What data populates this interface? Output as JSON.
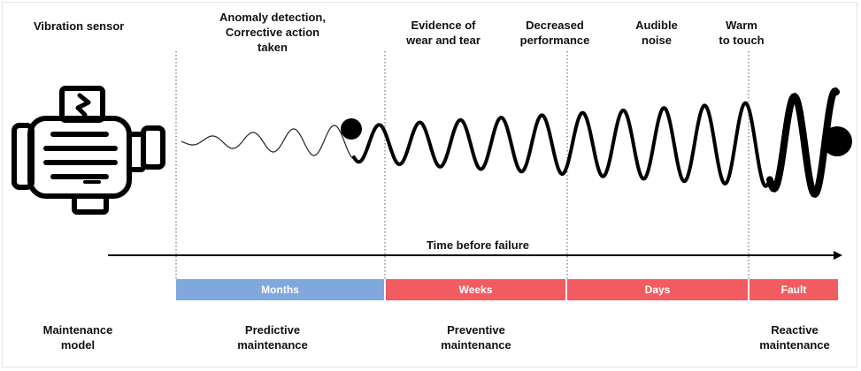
{
  "header": {
    "sensor_label": "Vibration sensor"
  },
  "symptoms": [
    {
      "id": "anomaly",
      "line1": "Anomaly detection,",
      "line2": "Corrective action",
      "line3": "taken"
    },
    {
      "id": "wear",
      "line1": "Evidence of",
      "line2": "wear and tear"
    },
    {
      "id": "performance",
      "line1": "Decreased",
      "line2": "performance"
    },
    {
      "id": "noise",
      "line1": "Audible",
      "line2": "noise"
    },
    {
      "id": "warm",
      "line1": "Warm",
      "line2": "to touch"
    }
  ],
  "timeline": {
    "label": "Time before failure"
  },
  "bands": [
    {
      "label": "Months",
      "color": "#7fa8dc"
    },
    {
      "label": "Weeks",
      "color": "#f25c61"
    },
    {
      "label": "Days",
      "color": "#f25c61"
    },
    {
      "label": "Fault",
      "color": "#f25c61"
    }
  ],
  "models": {
    "heading": {
      "line1": "Maintenance",
      "line2": "model"
    },
    "predictive": {
      "line1": "Predictive",
      "line2": "maintenance"
    },
    "preventive": {
      "line1": "Preventive",
      "line2": "maintenance"
    },
    "reactive": {
      "line1": "Reactive",
      "line2": "maintenance"
    }
  },
  "icons": {
    "motor": "electric-motor-icon"
  }
}
